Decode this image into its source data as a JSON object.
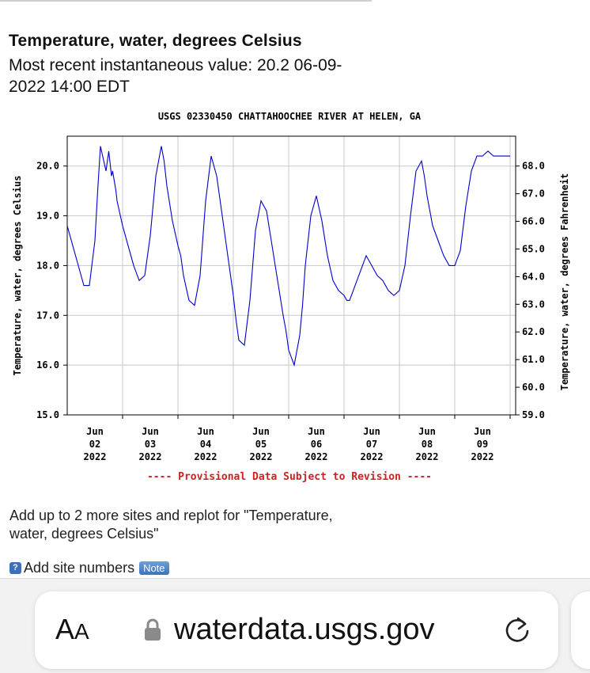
{
  "page": {
    "title": "Temperature, water, degrees Celsius",
    "recent_value_text": "Most recent instantaneous value: 20.2 06-09-2022   14:00 EDT"
  },
  "chart_data": {
    "type": "line",
    "title": "USGS 02330450 CHATTAHOOCHEE RIVER AT HELEN, GA",
    "ylabel": "Temperature, water, degrees Celsius",
    "y2label": "Temperature, water, degrees Fahrenheit",
    "ylim": [
      15.0,
      20.6
    ],
    "y_ticks": [
      "15.0",
      "16.0",
      "17.0",
      "18.0",
      "19.0",
      "20.0"
    ],
    "y_tick_values": [
      15.0,
      16.0,
      17.0,
      18.0,
      19.0,
      20.0
    ],
    "y2_ticks": [
      "59.0",
      "60.0",
      "61.0",
      "62.0",
      "63.0",
      "64.0",
      "65.0",
      "66.0",
      "67.0",
      "68.0"
    ],
    "y2_tick_values": [
      59.0,
      60.0,
      61.0,
      62.0,
      63.0,
      64.0,
      65.0,
      66.0,
      67.0,
      68.0
    ],
    "x_ticks": [
      {
        "month": "Jun",
        "day": "02",
        "year": "2022",
        "value": 1.0
      },
      {
        "month": "Jun",
        "day": "03",
        "year": "2022",
        "value": 2.0
      },
      {
        "month": "Jun",
        "day": "04",
        "year": "2022",
        "value": 3.0
      },
      {
        "month": "Jun",
        "day": "05",
        "year": "2022",
        "value": 4.0
      },
      {
        "month": "Jun",
        "day": "06",
        "year": "2022",
        "value": 5.0
      },
      {
        "month": "Jun",
        "day": "07",
        "year": "2022",
        "value": 6.0
      },
      {
        "month": "Jun",
        "day": "08",
        "year": "2022",
        "value": 7.0
      },
      {
        "month": "Jun",
        "day": "09",
        "year": "2022",
        "value": 8.0
      }
    ],
    "xlim": [
      0.0,
      8.1
    ],
    "grid": true,
    "note": "---- Provisional Data Subject to Revision ----",
    "series": [
      {
        "color": "#0000cc",
        "x": [
          0.0,
          0.1,
          0.2,
          0.3,
          0.4,
          0.5,
          0.55,
          0.6,
          0.7,
          0.75,
          0.78,
          0.8,
          0.82,
          0.85,
          0.88,
          0.9,
          1.0,
          1.1,
          1.2,
          1.3,
          1.4,
          1.5,
          1.6,
          1.7,
          1.75,
          1.8,
          1.9,
          2.0,
          2.05,
          2.1,
          2.2,
          2.3,
          2.4,
          2.5,
          2.6,
          2.7,
          2.8,
          2.85,
          2.9,
          3.0,
          3.05,
          3.1,
          3.2,
          3.3,
          3.4,
          3.5,
          3.6,
          3.7,
          3.8,
          3.9,
          3.95,
          4.0,
          4.1,
          4.2,
          4.25,
          4.3,
          4.4,
          4.5,
          4.6,
          4.7,
          4.8,
          4.9,
          5.0,
          5.05,
          5.1,
          5.2,
          5.3,
          5.4,
          5.5,
          5.6,
          5.7,
          5.8,
          5.9,
          6.0,
          6.1,
          6.2,
          6.3,
          6.4,
          6.45,
          6.5,
          6.6,
          6.7,
          6.8,
          6.9,
          7.0,
          7.1,
          7.2,
          7.3,
          7.4,
          7.5,
          7.6,
          7.7,
          7.8,
          7.9,
          7.95,
          8.0
        ],
        "y": [
          18.8,
          18.4,
          18.0,
          17.6,
          17.6,
          18.5,
          19.5,
          20.4,
          19.9,
          20.3,
          20.0,
          19.8,
          19.9,
          19.7,
          19.5,
          19.3,
          18.8,
          18.4,
          18.0,
          17.7,
          17.8,
          18.6,
          19.8,
          20.4,
          20.1,
          19.6,
          18.9,
          18.4,
          18.2,
          17.8,
          17.3,
          17.2,
          17.8,
          19.3,
          20.2,
          19.8,
          19.0,
          18.6,
          18.2,
          17.4,
          16.9,
          16.5,
          16.4,
          17.3,
          18.7,
          19.3,
          19.1,
          18.4,
          17.7,
          17.0,
          16.7,
          16.3,
          16.0,
          16.6,
          17.2,
          18.0,
          19.0,
          19.4,
          18.9,
          18.2,
          17.7,
          17.5,
          17.4,
          17.3,
          17.3,
          17.6,
          17.9,
          18.2,
          18.0,
          17.8,
          17.7,
          17.5,
          17.4,
          17.5,
          18.0,
          19.0,
          19.9,
          20.1,
          19.8,
          19.4,
          18.8,
          18.5,
          18.2,
          18.0,
          18.0,
          18.3,
          19.2,
          19.9,
          20.2,
          20.2,
          20.3,
          20.2,
          20.2,
          20.2,
          20.2,
          20.2
        ]
      }
    ]
  },
  "add_sites_text": "Add up to 2 more sites and replot for \"Temperature, water, degrees Celsius\"",
  "add_site_numbers": {
    "help_glyph": "?",
    "label": "Add site numbers",
    "note_label": "Note"
  },
  "browser": {
    "aa_big": "A",
    "aa_small": "A",
    "url": "waterdata.usgs.gov"
  }
}
